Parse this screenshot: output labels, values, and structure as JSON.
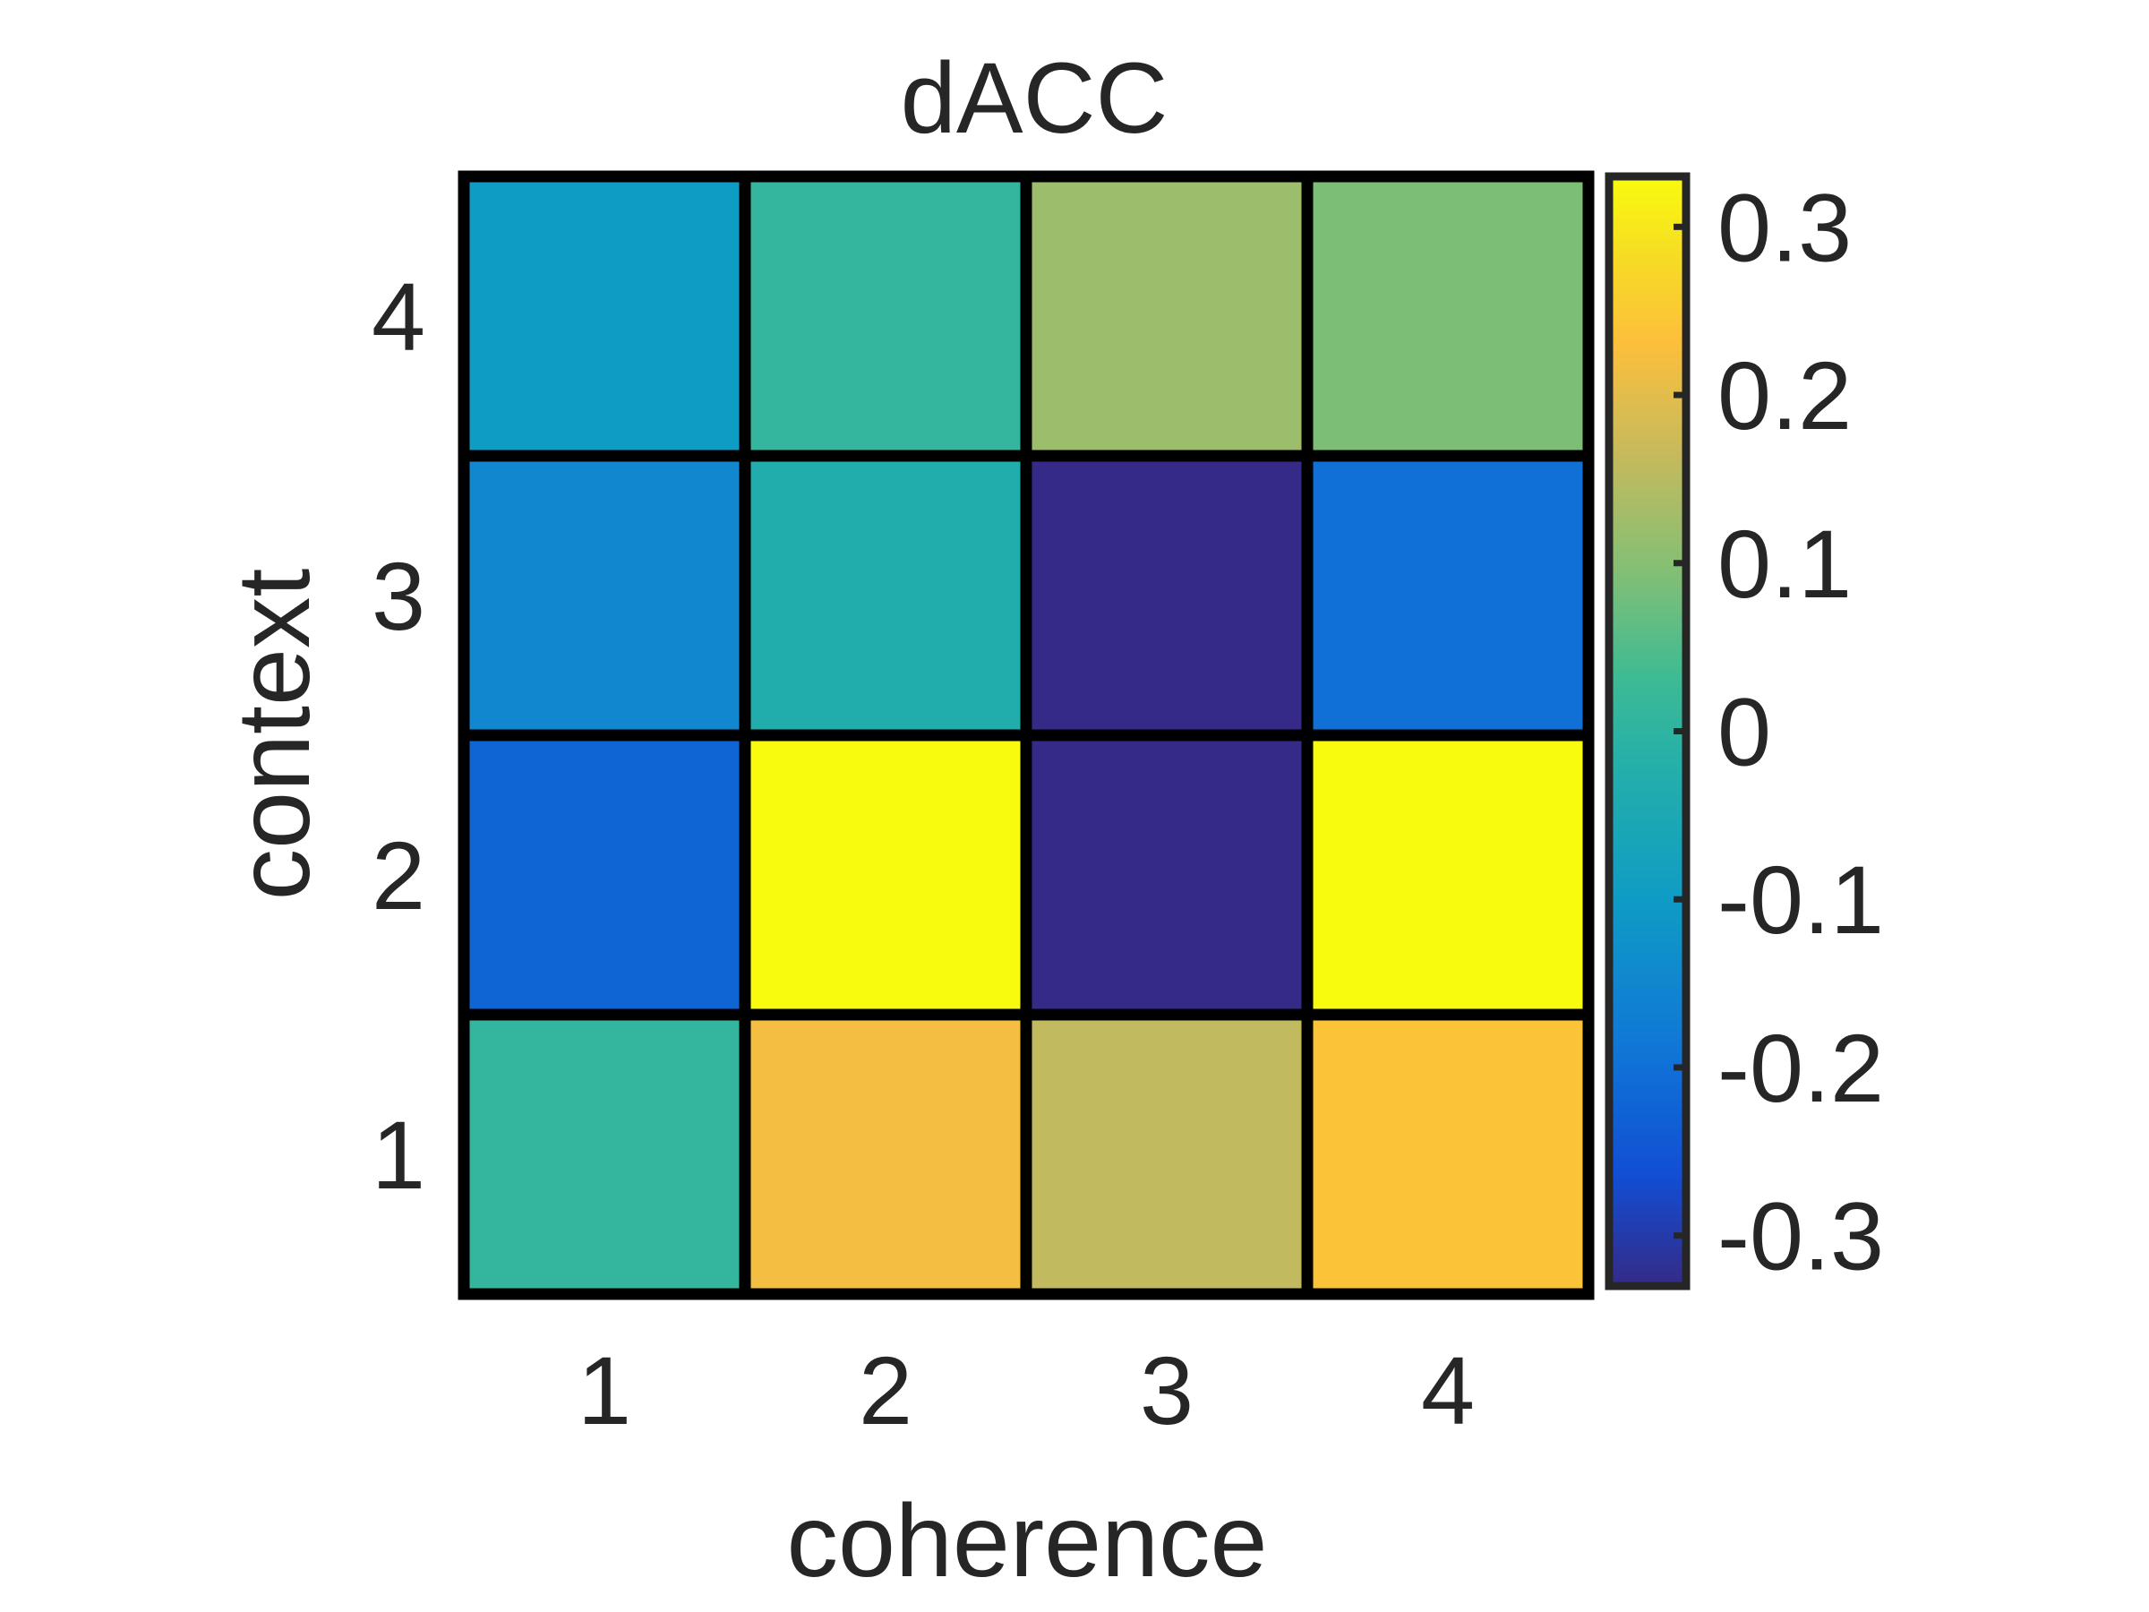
{
  "chart_data": {
    "type": "heatmap",
    "title": "dACC",
    "xlabel": "coherence",
    "ylabel": "context",
    "x_categories": [
      "1",
      "2",
      "3",
      "4"
    ],
    "y_categories": [
      "1",
      "2",
      "3",
      "4"
    ],
    "values": [
      [
        0.01,
        0.22,
        0.16,
        0.24
      ],
      [
        -0.22,
        0.33,
        -0.33,
        0.33
      ],
      [
        -0.15,
        -0.03,
        -0.33,
        -0.2
      ],
      [
        -0.1,
        0.01,
        0.12,
        0.09
      ]
    ],
    "values_note_rows": "rows ordered by context 1..4, columns by coherence 1..4",
    "colorbar": {
      "min": -0.33,
      "max": 0.33,
      "ticks": [
        -0.3,
        -0.2,
        -0.1,
        0,
        0.1,
        0.2,
        0.3
      ],
      "tick_labels": [
        "-0.3",
        "-0.2",
        "-0.1",
        "0",
        "0.1",
        "0.2",
        "0.3"
      ],
      "colormap": "parula"
    },
    "grid": false,
    "legend": "colorbar-right"
  }
}
